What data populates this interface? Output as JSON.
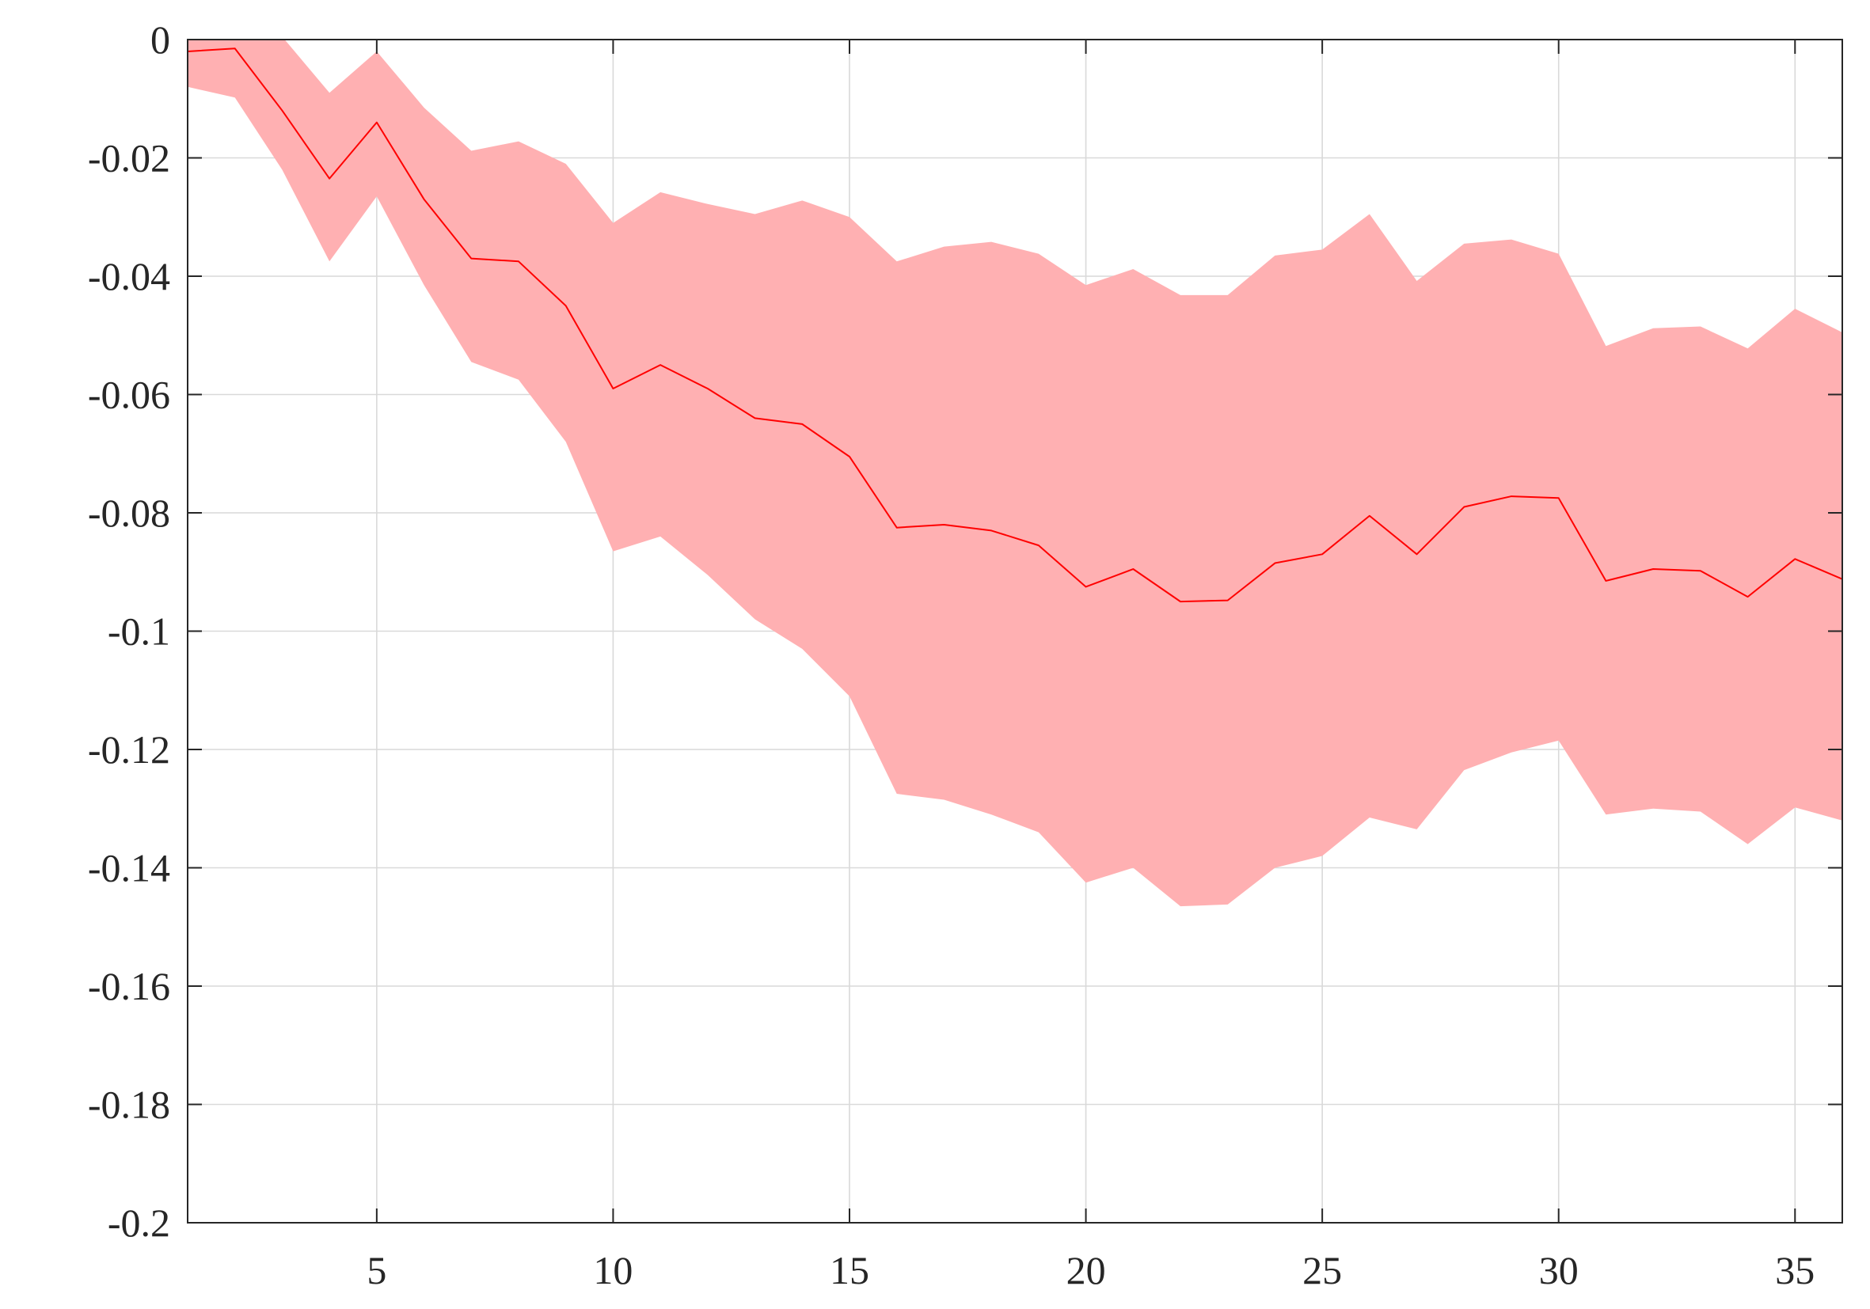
{
  "chart_data": {
    "type": "area",
    "title": "",
    "xlabel": "",
    "ylabel": "",
    "xlim": [
      1,
      36
    ],
    "ylim": [
      -0.2,
      0
    ],
    "grid": true,
    "xticks": [
      5,
      10,
      15,
      20,
      25,
      30,
      35
    ],
    "xtick_labels": [
      "5",
      "10",
      "15",
      "20",
      "25",
      "30",
      "35"
    ],
    "yticks": [
      0,
      -0.02,
      -0.04,
      -0.06,
      -0.08,
      -0.1,
      -0.12,
      -0.14,
      -0.16,
      -0.18,
      -0.2
    ],
    "ytick_labels": [
      "0",
      "-0.02",
      "-0.04",
      "-0.06",
      "-0.08",
      "-0.1",
      "-0.12",
      "-0.14",
      "-0.16",
      "-0.18",
      "-0.2"
    ],
    "x": [
      1,
      2,
      3,
      4,
      5,
      6,
      7,
      8,
      9,
      10,
      11,
      12,
      13,
      14,
      15,
      16,
      17,
      18,
      19,
      20,
      21,
      22,
      23,
      24,
      25,
      26,
      27,
      28,
      29,
      30,
      31,
      32,
      33,
      34,
      35,
      36
    ],
    "series": [
      {
        "values": [
          -0.002,
          -0.0015,
          -0.012,
          -0.0235,
          -0.014,
          -0.027,
          -0.037,
          -0.0375,
          -0.045,
          -0.059,
          -0.055,
          -0.059,
          -0.064,
          -0.065,
          -0.0705,
          -0.0825,
          -0.082,
          -0.083,
          -0.0855,
          -0.0925,
          -0.0895,
          -0.095,
          -0.0948,
          -0.0885,
          -0.087,
          -0.0805,
          -0.087,
          -0.079,
          -0.0772,
          -0.0775,
          -0.0915,
          -0.0895,
          -0.0898,
          -0.0942,
          -0.0878,
          -0.0912
        ],
        "color": "#ff0000"
      }
    ],
    "band": {
      "upper": [
        0.002,
        0.002,
        0.0005,
        -0.009,
        -0.002,
        -0.0115,
        -0.0188,
        -0.0172,
        -0.021,
        -0.031,
        -0.0258,
        -0.0278,
        -0.0295,
        -0.0272,
        -0.03,
        -0.0375,
        -0.035,
        -0.0342,
        -0.0362,
        -0.0415,
        -0.0388,
        -0.0432,
        -0.0432,
        -0.0365,
        -0.0355,
        -0.0295,
        -0.0408,
        -0.0345,
        -0.0338,
        -0.0362,
        -0.0518,
        -0.0488,
        -0.0485,
        -0.0522,
        -0.0455,
        -0.0495
      ],
      "lower": [
        -0.008,
        -0.0098,
        -0.022,
        -0.0375,
        -0.0265,
        -0.0415,
        -0.0545,
        -0.0575,
        -0.068,
        -0.0865,
        -0.084,
        -0.0905,
        -0.098,
        -0.103,
        -0.111,
        -0.1275,
        -0.1285,
        -0.131,
        -0.134,
        -0.1425,
        -0.14,
        -0.1465,
        -0.1462,
        -0.14,
        -0.138,
        -0.1315,
        -0.1335,
        -0.1235,
        -0.1205,
        -0.1185,
        -0.131,
        -0.13,
        -0.1305,
        -0.136,
        -0.1298,
        -0.132
      ],
      "color": "#ffb0b2"
    }
  }
}
